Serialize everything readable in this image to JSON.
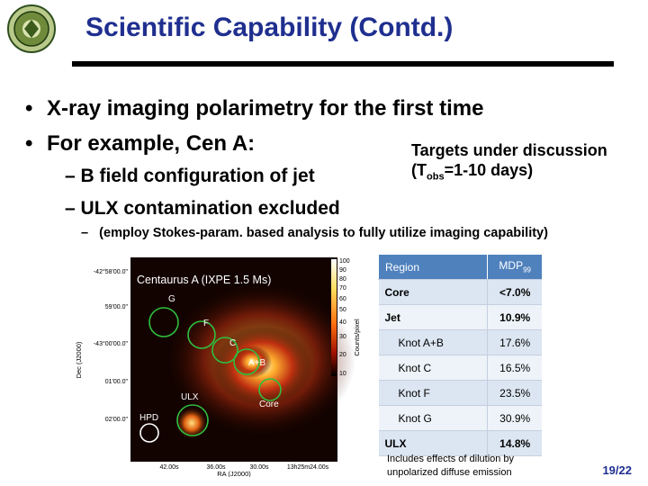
{
  "slide": {
    "title": "Scientific Capability (Contd.)",
    "bullets": [
      "X-ray imaging polarimetry for the first time",
      "For example, Cen A:"
    ],
    "bullet_marker": "•",
    "sub_marker": "–",
    "sub_bullets": [
      "B field configuration of jet",
      "ULX contamination excluded"
    ],
    "targets": {
      "line1": "Targets under discussion",
      "open": "(T",
      "subscript": "obs",
      "rest": "=1-10 days)"
    },
    "note": "(employ Stokes-param. based analysis to fully utilize imaging capability)",
    "page_number": "19/22"
  },
  "figure": {
    "title": "Centaurus A (IXPE 1.5 Ms)",
    "region_labels": [
      "G",
      "F",
      "C",
      "A+B",
      "ULX",
      "Core",
      "HPD"
    ],
    "y_ticks": [
      "-42°58'00.0\"",
      "59'00.0\"",
      "-43°00'00.0\"",
      "01'00.0\"",
      "02'00.0\""
    ],
    "x_ticks": [
      "42.00s",
      "36.00s",
      "30.00s",
      "13h25m24.00s"
    ],
    "y_label": "Dec (J2000)",
    "x_label": "RA (J2000)",
    "colorbar_ticks": [
      "100",
      "90",
      "80",
      "70",
      "60",
      "50",
      "40",
      "30",
      "20",
      "10"
    ],
    "colorbar_label": "Counts/pixel"
  },
  "table": {
    "headers": [
      "Region",
      "MDP99"
    ],
    "rows": [
      {
        "region": "Core",
        "value": "<7.0%",
        "bold": true,
        "indent": false
      },
      {
        "region": "Jet",
        "value": "10.9%",
        "bold": true,
        "indent": false
      },
      {
        "region": "Knot A+B",
        "value": "17.6%",
        "bold": false,
        "indent": true
      },
      {
        "region": "Knot C",
        "value": "16.5%",
        "bold": false,
        "indent": true
      },
      {
        "region": "Knot F",
        "value": "23.5%",
        "bold": false,
        "indent": true
      },
      {
        "region": "Knot G",
        "value": "30.9%",
        "bold": false,
        "indent": true
      },
      {
        "region": "ULX",
        "value": "14.8%",
        "bold": true,
        "indent": false
      }
    ],
    "footnote": [
      "Includes effects of dilution by",
      "unpolarized diffuse emission"
    ]
  }
}
